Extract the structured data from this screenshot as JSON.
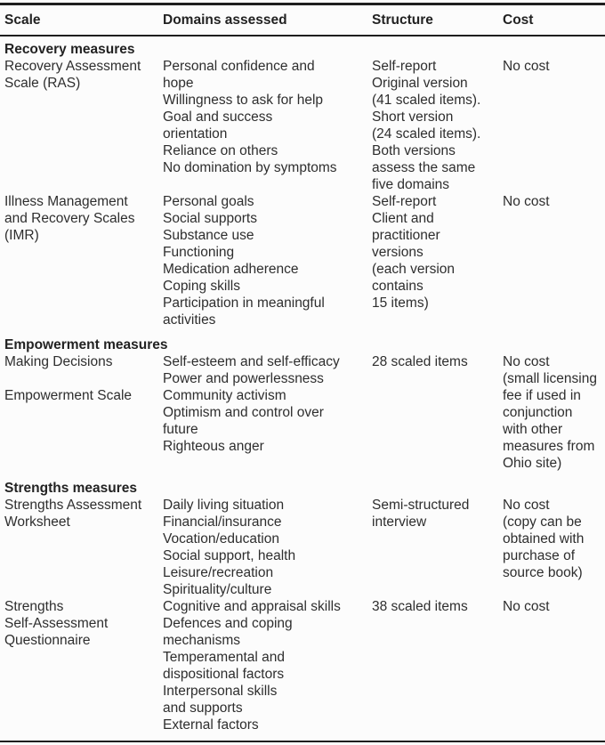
{
  "table": {
    "columns": [
      "Scale",
      "Domains assessed",
      "Structure",
      "Cost"
    ],
    "sections": [
      {
        "title": "Recovery measures",
        "rows": [
          {
            "scale": [
              "Recovery Assessment",
              "Scale (RAS)"
            ],
            "domains": [
              "Personal confidence and",
              "hope",
              "Willingness to ask for help",
              "Goal and success",
              "orientation",
              "Reliance on others",
              "No domination by symptoms"
            ],
            "structure": [
              "Self-report",
              "Original version",
              "(41 scaled items).",
              "Short version",
              "(24 scaled items).",
              "Both versions",
              "assess the same",
              "five domains"
            ],
            "cost": [
              "No cost"
            ]
          },
          {
            "scale": [
              "Illness Management",
              "and Recovery Scales",
              "(IMR)"
            ],
            "domains": [
              "Personal goals",
              "Social supports",
              "Substance use",
              "Functioning",
              "Medication adherence",
              "Coping skills",
              "Participation in meaningful",
              "activities"
            ],
            "structure": [
              "Self-report",
              "Client and",
              "practitioner",
              "versions",
              "(each version",
              "contains",
              "15 items)"
            ],
            "cost": [
              "No cost"
            ]
          }
        ]
      },
      {
        "title": "Empowerment measures",
        "rows": [
          {
            "scale": [
              "Making Decisions",
              "",
              "Empowerment Scale"
            ],
            "domains": [
              "Self-esteem and self-efficacy",
              "Power and powerlessness",
              "Community activism",
              "Optimism and control over",
              "future",
              "Righteous anger"
            ],
            "structure": [
              "28 scaled items"
            ],
            "cost": [
              "No cost",
              "(small licensing",
              "fee if used in",
              "conjunction",
              "with other",
              "measures from",
              "Ohio site)"
            ]
          }
        ]
      },
      {
        "title": "Strengths measures",
        "rows": [
          {
            "scale": [
              "Strengths Assessment",
              "Worksheet"
            ],
            "domains": [
              "Daily living situation",
              "Financial/insurance",
              "Vocation/education",
              "Social support, health",
              "Leisure/recreation",
              "Spirituality/culture"
            ],
            "structure": [
              "Semi-structured",
              "interview"
            ],
            "cost": [
              "No cost",
              "(copy can be",
              "obtained with",
              "purchase of",
              "source book)"
            ]
          },
          {
            "scale": [
              "Strengths",
              "Self-Assessment",
              "Questionnaire"
            ],
            "domains": [
              "Cognitive and appraisal skills",
              "Defences and coping",
              "mechanisms",
              "Temperamental and",
              "dispositional factors",
              "Interpersonal skills",
              "and supports",
              "External factors"
            ],
            "structure": [
              "38 scaled items"
            ],
            "cost": [
              "No cost"
            ]
          }
        ]
      }
    ]
  }
}
